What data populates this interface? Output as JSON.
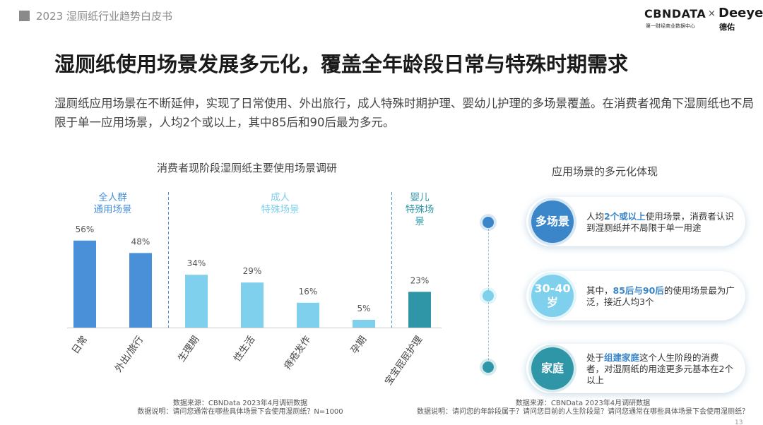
{
  "header": {
    "title": "2023 湿厕纸行业趋势白皮书",
    "logo_cbn": "CBNDATA",
    "logo_cbn_sub": "第一财经商业数据中心",
    "logo_x": "×",
    "logo_deeyeo": "Deeyeo",
    "logo_deeyeo_sub": "德佑"
  },
  "page": {
    "title": "湿厕纸使用场景发展多元化，覆盖全年龄段日常与特殊时期需求",
    "intro": "湿厕纸应用场景在不断延伸，实现了日常使用、外出旅行，成人特殊时期护理、婴幼儿护理的多场景覆盖。在消费者视角下湿厕纸也不局限于单一应用场景，人均2个或以上，其中85后和90后最为多元。"
  },
  "chart_data": {
    "type": "bar",
    "title": "消费者现阶段湿厕纸主要使用场景调研",
    "categories": [
      "日常",
      "外出/旅行",
      "生理期",
      "性生活",
      "痔疮发作",
      "孕期",
      "宝宝屁屁护理"
    ],
    "values": [
      56,
      48,
      34,
      29,
      16,
      5,
      23
    ],
    "value_labels": [
      "56%",
      "48%",
      "34%",
      "29%",
      "16%",
      "5%",
      "23%"
    ],
    "ylim": [
      0,
      100
    ],
    "groups": [
      {
        "label_lines": [
          "全人群",
          "通用场景"
        ],
        "categories": [
          "日常",
          "外出/旅行"
        ],
        "color": "#4a90d9"
      },
      {
        "label_lines": [
          "成人",
          "特殊场景"
        ],
        "categories": [
          "生理期",
          "性生活",
          "痔疮发作",
          "孕期"
        ],
        "color": "#7fd0ec"
      },
      {
        "label_lines": [
          "婴儿",
          "特殊场",
          "景"
        ],
        "categories": [
          "宝宝屁屁护理"
        ],
        "color": "#2f96a8"
      }
    ],
    "source_line1": "数据来源：CBNData 2023年4月调研数据",
    "source_line2": "数据说明：请问您通常在哪些具体场景下会使用湿厕纸？N=1000"
  },
  "right_panel": {
    "title": "应用场景的多元化体现",
    "cards": [
      {
        "badge_lines": [
          "多场景"
        ],
        "text_before": "人均",
        "highlight": "2个或以上",
        "text_after": "使用场景，消费者认识到湿厕纸并不局限于单一用途",
        "badge_color": "#3b86c9",
        "dot_color": "#3b86c9"
      },
      {
        "badge_lines": [
          "30-40",
          "岁"
        ],
        "text_before": "其中，",
        "highlight": "85后与90后",
        "text_after": "的使用场景最为广泛，接近人均3个",
        "badge_color": "#7fd0ec",
        "dot_color": "#7fd0ec"
      },
      {
        "badge_lines": [
          "家庭"
        ],
        "text_before": "处于",
        "highlight": "组建家庭",
        "text_after": "这个人生阶段的消费者，对湿厕纸的用途更多元基本在2个以上",
        "badge_color": "#2f96a8",
        "dot_color": "#2f96a8"
      }
    ],
    "source_line1": "数据来源：CBNData 2023年4月调研数据",
    "source_line2": "数据说明：请问您的年龄段属于？请问您目前的人生阶段是？请问您通常在哪些具体场景下会使用湿厕纸？"
  }
}
